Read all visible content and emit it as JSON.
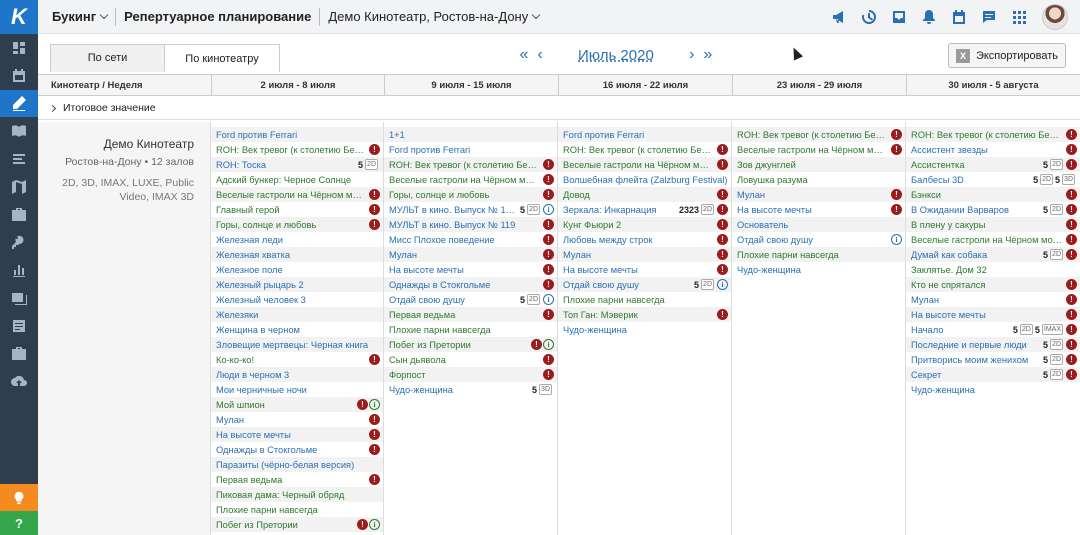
{
  "sidebar": {
    "logo": "K",
    "items": [
      "dashboard-icon",
      "calendar-icon",
      "edit-icon",
      "book-icon",
      "list-icon",
      "map-icon",
      "briefcase-icon",
      "key-icon",
      "bar-chart-icon",
      "images-icon",
      "document-icon",
      "suitcase-icon",
      "cloud-upload-icon"
    ],
    "active_index": 2,
    "help_label": "?"
  },
  "topbar": {
    "app": "Букинг",
    "section": "Репертуарное планирование",
    "theatre_select": "Демо Кинотеатр, Ростов-на-Дону"
  },
  "toolbar": {
    "tabs": [
      {
        "label": "По сети"
      },
      {
        "label": "По кинотеатру"
      }
    ],
    "month": "Июль 2020",
    "export_label": "Экспортировать",
    "excel_glyph": "X"
  },
  "grid": {
    "first_header": "Кинотеатр / Неделя",
    "weeks": [
      "2 июля - 8 июля",
      "9 июля - 15 июля",
      "16 июля - 22 июля",
      "23 июля - 29 июля",
      "30 июля - 5 августа"
    ],
    "summary_label": "Итоговое значение"
  },
  "theatre": {
    "name": "Демо Кинотеатр",
    "city_halls": "Ростов-на-Дону • 12 залов",
    "formats": "2D, 3D, IMAX, LUXE, Public Video, IMAX 3D"
  },
  "columns": [
    [
      {
        "t": "Ford против Ferrari",
        "c": "b"
      },
      {
        "t": "ROH: Век тревог (к столетию Бер…",
        "c": "g",
        "b": [
          [
            "x"
          ]
        ]
      },
      {
        "t": "ROH: Тоска",
        "c": "b",
        "b": [
          [
            "n",
            "5"
          ],
          [
            "f",
            "2D"
          ]
        ]
      },
      {
        "t": "Адский бункер: Черное Солнце",
        "c": "g"
      },
      {
        "t": "Веселые гастроли на Чёрном море",
        "c": "g",
        "b": [
          [
            "x"
          ]
        ]
      },
      {
        "t": "Главный герой",
        "c": "g",
        "b": [
          [
            "x"
          ]
        ]
      },
      {
        "t": "Горы, солнце и любовь",
        "c": "g",
        "b": [
          [
            "x"
          ]
        ]
      },
      {
        "t": "Железная леди",
        "c": "b"
      },
      {
        "t": "Железная хватка",
        "c": "b"
      },
      {
        "t": "Железное поле",
        "c": "b"
      },
      {
        "t": "Железный рыцарь 2",
        "c": "b"
      },
      {
        "t": "Железный человек 3",
        "c": "b"
      },
      {
        "t": "Железяки",
        "c": "b"
      },
      {
        "t": "Женщина в черном",
        "c": "b"
      },
      {
        "t": "Зловещие мертвецы: Черная книга",
        "c": "b"
      },
      {
        "t": "Ко-ко-ко!",
        "c": "g",
        "b": [
          [
            "x"
          ]
        ]
      },
      {
        "t": "Люди в черном 3",
        "c": "b"
      },
      {
        "t": "Мои черничные ночи",
        "c": "b"
      },
      {
        "t": "Мой шпион",
        "c": "g",
        "b": [
          [
            "x"
          ],
          [
            "ig"
          ]
        ]
      },
      {
        "t": "Мулан",
        "c": "b",
        "b": [
          [
            "x"
          ]
        ]
      },
      {
        "t": "На высоте мечты",
        "c": "b",
        "b": [
          [
            "x"
          ]
        ]
      },
      {
        "t": "Однажды в Стокгольме",
        "c": "b",
        "b": [
          [
            "x"
          ]
        ]
      },
      {
        "t": "Паразиты (чёрно-белая версия)",
        "c": "b"
      },
      {
        "t": "Первая ведьма",
        "c": "g",
        "b": [
          [
            "x"
          ]
        ]
      },
      {
        "t": "Пиковая дама: Черный обряд",
        "c": "g"
      },
      {
        "t": "Плохие парни навсегда",
        "c": "g"
      },
      {
        "t": "Побег из Претории",
        "c": "g",
        "b": [
          [
            "x"
          ],
          [
            "ig"
          ]
        ]
      }
    ],
    [
      {
        "t": "1+1",
        "c": "b"
      },
      {
        "t": "Ford против Ferrari",
        "c": "b"
      },
      {
        "t": "ROH: Век тревог (к столетию Бер…",
        "c": "g",
        "b": [
          [
            "x"
          ]
        ]
      },
      {
        "t": "Веселые гастроли на Чёрном море",
        "c": "g",
        "b": [
          [
            "x"
          ]
        ]
      },
      {
        "t": "Горы, солнце и любовь",
        "c": "g",
        "b": [
          [
            "x"
          ]
        ]
      },
      {
        "t": "МУЛЬТ в кино. Выпуск № 1…",
        "c": "b",
        "b": [
          [
            "n",
            "5"
          ],
          [
            "f",
            "2D"
          ],
          [
            "i"
          ]
        ]
      },
      {
        "t": "МУЛЬТ в кино. Выпуск № 119",
        "c": "b",
        "b": [
          [
            "x"
          ]
        ]
      },
      {
        "t": "Мисс Плохое поведение",
        "c": "b",
        "b": [
          [
            "x"
          ]
        ]
      },
      {
        "t": "Мулан",
        "c": "b",
        "b": [
          [
            "x"
          ]
        ]
      },
      {
        "t": "На высоте мечты",
        "c": "b",
        "b": [
          [
            "x"
          ]
        ]
      },
      {
        "t": "Однажды в Стокгольме",
        "c": "b",
        "b": [
          [
            "x"
          ]
        ]
      },
      {
        "t": "Отдай свою душу",
        "c": "b",
        "b": [
          [
            "n",
            "5"
          ],
          [
            "f",
            "2D"
          ],
          [
            "i"
          ]
        ]
      },
      {
        "t": "Первая ведьма",
        "c": "g",
        "b": [
          [
            "x"
          ]
        ]
      },
      {
        "t": "Плохие парни навсегда",
        "c": "g"
      },
      {
        "t": "Побег из Претории",
        "c": "g",
        "b": [
          [
            "x"
          ],
          [
            "ig"
          ]
        ]
      },
      {
        "t": "Сын дьявола",
        "c": "g",
        "b": [
          [
            "x"
          ]
        ]
      },
      {
        "t": "Форпост",
        "c": "g",
        "b": [
          [
            "x"
          ]
        ]
      },
      {
        "t": "Чудо-женщина",
        "c": "b",
        "b": [
          [
            "n",
            "5"
          ],
          [
            "f",
            "3D"
          ]
        ]
      }
    ],
    [
      {
        "t": "Ford против Ferrari",
        "c": "b"
      },
      {
        "t": "ROH: Век тревог (к столетию Бер…",
        "c": "g",
        "b": [
          [
            "x"
          ]
        ]
      },
      {
        "t": "Веселые гастроли на Чёрном море",
        "c": "g",
        "b": [
          [
            "x"
          ]
        ]
      },
      {
        "t": "Волшебная флейта (Zalzburg Festival)",
        "c": "b"
      },
      {
        "t": "Довод",
        "c": "g",
        "b": [
          [
            "x"
          ]
        ]
      },
      {
        "t": "Зеркала: Инкарнация",
        "c": "b",
        "b": [
          [
            "n",
            "2323"
          ],
          [
            "f",
            "2D"
          ],
          [
            "x"
          ]
        ]
      },
      {
        "t": "Кунг Фьюри 2",
        "c": "g",
        "b": [
          [
            "x"
          ]
        ]
      },
      {
        "t": "Любовь между строк",
        "c": "b",
        "b": [
          [
            "x"
          ]
        ]
      },
      {
        "t": "Мулан",
        "c": "b",
        "b": [
          [
            "x"
          ]
        ]
      },
      {
        "t": "На высоте мечты",
        "c": "b",
        "b": [
          [
            "x"
          ]
        ]
      },
      {
        "t": "Отдай свою душу",
        "c": "b",
        "b": [
          [
            "n",
            "5"
          ],
          [
            "f",
            "2D"
          ],
          [
            "i"
          ]
        ]
      },
      {
        "t": "Плохие парни навсегда",
        "c": "g"
      },
      {
        "t": "Топ Ган: Мэверик",
        "c": "g",
        "b": [
          [
            "x"
          ]
        ]
      },
      {
        "t": "Чудо-женщина",
        "c": "b"
      }
    ],
    [
      {
        "t": "ROH: Век тревог (к столетию Бер…",
        "c": "g",
        "b": [
          [
            "x"
          ]
        ]
      },
      {
        "t": "Веселые гастроли на Чёрном море",
        "c": "g",
        "b": [
          [
            "x"
          ]
        ]
      },
      {
        "t": "Зов джунглей",
        "c": "g"
      },
      {
        "t": "Ловушка разума",
        "c": "g"
      },
      {
        "t": "Мулан",
        "c": "b",
        "b": [
          [
            "x"
          ]
        ]
      },
      {
        "t": "На высоте мечты",
        "c": "b",
        "b": [
          [
            "x"
          ]
        ]
      },
      {
        "t": "Основатель",
        "c": "b"
      },
      {
        "t": "Отдай свою душу",
        "c": "b",
        "b": [
          [
            "i"
          ]
        ]
      },
      {
        "t": "Плохие парни навсегда",
        "c": "g"
      },
      {
        "t": "Чудо-женщина",
        "c": "b"
      }
    ],
    [
      {
        "t": "ROH: Век тревог (к столетию Бер…",
        "c": "g",
        "b": [
          [
            "x"
          ]
        ]
      },
      {
        "t": "Ассистент звезды",
        "c": "b",
        "b": [
          [
            "x"
          ]
        ]
      },
      {
        "t": "Ассистентка",
        "c": "g",
        "b": [
          [
            "n",
            "5"
          ],
          [
            "f",
            "2D"
          ],
          [
            "x"
          ]
        ]
      },
      {
        "t": "Балбесы 3D",
        "c": "b",
        "b": [
          [
            "n",
            "5"
          ],
          [
            "f",
            "2D"
          ],
          [
            "n",
            "5"
          ],
          [
            "f",
            "3D"
          ]
        ]
      },
      {
        "t": "Бэнкси",
        "c": "g",
        "b": [
          [
            "x"
          ]
        ]
      },
      {
        "t": "В Ожидании Варваров",
        "c": "b",
        "b": [
          [
            "n",
            "5"
          ],
          [
            "f",
            "2D"
          ],
          [
            "x"
          ]
        ]
      },
      {
        "t": "В плену у сакуры",
        "c": "g",
        "b": [
          [
            "x"
          ]
        ]
      },
      {
        "t": "Веселые гастроли на Чёрном море",
        "c": "g",
        "b": [
          [
            "x"
          ]
        ]
      },
      {
        "t": "Думай как собака",
        "c": "b",
        "b": [
          [
            "n",
            "5"
          ],
          [
            "f",
            "2D"
          ],
          [
            "x"
          ]
        ]
      },
      {
        "t": "Заклятье. Дом 32",
        "c": "g"
      },
      {
        "t": "Кто не спрятался",
        "c": "g",
        "b": [
          [
            "x"
          ]
        ]
      },
      {
        "t": "Мулан",
        "c": "b",
        "b": [
          [
            "x"
          ]
        ]
      },
      {
        "t": "На высоте мечты",
        "c": "b",
        "b": [
          [
            "x"
          ]
        ]
      },
      {
        "t": "Начало",
        "c": "b",
        "b": [
          [
            "n",
            "5"
          ],
          [
            "f",
            "2D"
          ],
          [
            "n",
            "5"
          ],
          [
            "f",
            "IMAX"
          ],
          [
            "x"
          ]
        ]
      },
      {
        "t": "Последние и первые люди",
        "c": "b",
        "b": [
          [
            "n",
            "5"
          ],
          [
            "f",
            "2D"
          ],
          [
            "x"
          ]
        ]
      },
      {
        "t": "Притворись моим женихом",
        "c": "b",
        "b": [
          [
            "n",
            "5"
          ],
          [
            "f",
            "2D"
          ],
          [
            "x"
          ]
        ]
      },
      {
        "t": "Секрет",
        "c": "b",
        "b": [
          [
            "n",
            "5"
          ],
          [
            "f",
            "2D"
          ],
          [
            "x"
          ]
        ]
      },
      {
        "t": "Чудо-женщина",
        "c": "b"
      }
    ]
  ],
  "colors": {
    "accent": "#1f76c9",
    "link": "#2a6fb5",
    "green": "#2d7a2d",
    "alert": "#9b1c1c"
  }
}
